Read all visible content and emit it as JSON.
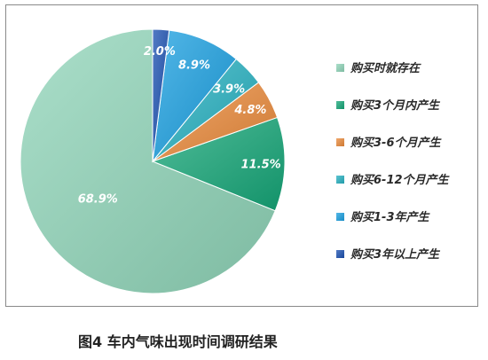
{
  "chart_data": {
    "type": "pie",
    "title": "",
    "categories": [
      "购买时就存在",
      "购买3个月内产生",
      "购买3-6个月产生",
      "购买6-12个月产生",
      "购买1-3年产生",
      "购买3年以上产生"
    ],
    "values": [
      68.9,
      11.5,
      4.8,
      3.9,
      8.9,
      2.0
    ],
    "value_labels": [
      "68.9%",
      "11.5%",
      "4.8%",
      "3.9%",
      "8.9%",
      "2.0%"
    ],
    "colors": [
      "#8fd4b8",
      "#15a677",
      "#ea8a3a",
      "#25b0c0",
      "#1a9fe0",
      "#1a4fb0"
    ],
    "legend_position": "right",
    "grid": false
  },
  "caption": "图4 车内气味出现时间调研结果"
}
